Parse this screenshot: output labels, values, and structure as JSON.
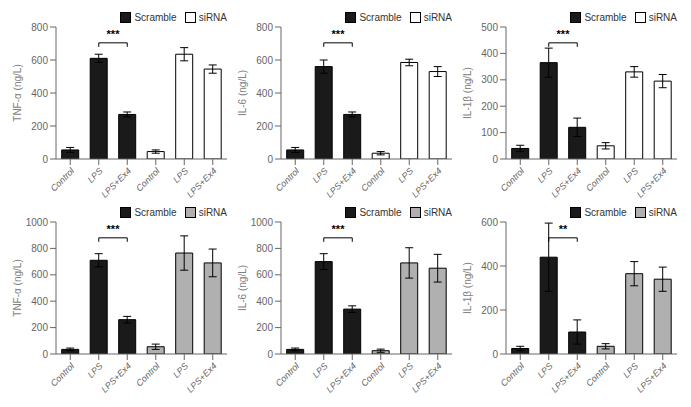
{
  "chart_data": [
    {
      "type": "bar",
      "ylabel": "TNF-α (ng/L)",
      "categories": [
        "Control",
        "LPS",
        "LPS+Ex4",
        "Control",
        "LPS",
        "LPS+Ex4"
      ],
      "series": [
        {
          "name": "Scramble",
          "color": "#1a1a1a",
          "values": [
            55,
            610,
            270,
            null,
            null,
            null
          ],
          "errors": [
            15,
            25,
            15,
            null,
            null,
            null
          ]
        },
        {
          "name": "siRNA",
          "color": "white",
          "values": [
            null,
            null,
            null,
            45,
            635,
            545
          ],
          "errors": [
            null,
            null,
            null,
            10,
            40,
            25
          ]
        }
      ],
      "ylim": [
        0,
        800
      ],
      "yticks": [
        0,
        200,
        400,
        600,
        800
      ],
      "grid": false,
      "legend": "upper right",
      "annotations": [
        {
          "text": "***",
          "between": [
            "LPS",
            "LPS+Ex4"
          ]
        }
      ]
    },
    {
      "type": "bar",
      "ylabel": "IL-6 (ng/L)",
      "categories": [
        "Control",
        "LPS",
        "LPS+Ex4",
        "Control",
        "LPS",
        "LPS+Ex4"
      ],
      "series": [
        {
          "name": "Scramble",
          "color": "#1a1a1a",
          "values": [
            55,
            560,
            270,
            null,
            null,
            null
          ],
          "errors": [
            15,
            40,
            15,
            null,
            null,
            null
          ]
        },
        {
          "name": "siRNA",
          "color": "white",
          "values": [
            null,
            null,
            null,
            35,
            585,
            530
          ],
          "errors": [
            null,
            null,
            null,
            10,
            20,
            30
          ]
        }
      ],
      "ylim": [
        0,
        800
      ],
      "yticks": [
        0,
        200,
        400,
        600,
        800
      ],
      "grid": false,
      "legend": "upper right",
      "annotations": [
        {
          "text": "***",
          "between": [
            "LPS",
            "LPS+Ex4"
          ]
        }
      ]
    },
    {
      "type": "bar",
      "ylabel": "IL-1β (ng/L)",
      "categories": [
        "Control",
        "LPS",
        "LPS+Ex4",
        "Control",
        "LPS",
        "LPS+Ex4"
      ],
      "series": [
        {
          "name": "Scramble",
          "color": "#1a1a1a",
          "values": [
            40,
            365,
            120,
            null,
            null,
            null
          ],
          "errors": [
            12,
            55,
            35,
            null,
            null,
            null
          ]
        },
        {
          "name": "siRNA",
          "color": "white",
          "values": [
            null,
            null,
            null,
            50,
            330,
            295
          ],
          "errors": [
            null,
            null,
            null,
            12,
            20,
            25
          ]
        }
      ],
      "ylim": [
        0,
        500
      ],
      "yticks": [
        0,
        100,
        200,
        300,
        400,
        500
      ],
      "grid": false,
      "legend": "upper right",
      "annotations": [
        {
          "text": "***",
          "between": [
            "LPS",
            "LPS+Ex4"
          ]
        }
      ]
    },
    {
      "type": "bar",
      "ylabel": "TNF-α (ng/L)",
      "categories": [
        "Control",
        "LPS",
        "LPS+Ex4",
        "Control",
        "LPS",
        "LPS+Ex4"
      ],
      "series": [
        {
          "name": "Scramble",
          "color": "#1a1a1a",
          "values": [
            35,
            710,
            260,
            null,
            null,
            null
          ],
          "errors": [
            10,
            50,
            25,
            null,
            null,
            null
          ]
        },
        {
          "name": "siRNA",
          "color": "#b0b0b0",
          "values": [
            null,
            null,
            null,
            55,
            765,
            690
          ],
          "errors": [
            null,
            null,
            null,
            20,
            130,
            105
          ]
        }
      ],
      "ylim": [
        0,
        1000
      ],
      "yticks": [
        0,
        200,
        400,
        600,
        800,
        1000
      ],
      "grid": false,
      "legend": "upper right",
      "annotations": [
        {
          "text": "***",
          "between": [
            "LPS",
            "LPS+Ex4"
          ]
        }
      ]
    },
    {
      "type": "bar",
      "ylabel": "IL-6 (ng/L)",
      "categories": [
        "Control",
        "LPS",
        "LPS+Ex4",
        "Control",
        "LPS",
        "LPS+Ex4"
      ],
      "series": [
        {
          "name": "Scramble",
          "color": "#1a1a1a",
          "values": [
            35,
            700,
            340,
            null,
            null,
            null
          ],
          "errors": [
            10,
            60,
            25,
            null,
            null,
            null
          ]
        },
        {
          "name": "siRNA",
          "color": "#b0b0b0",
          "values": [
            null,
            null,
            null,
            25,
            690,
            650
          ],
          "errors": [
            null,
            null,
            null,
            12,
            115,
            105
          ]
        }
      ],
      "ylim": [
        0,
        1000
      ],
      "yticks": [
        0,
        200,
        400,
        600,
        800,
        1000
      ],
      "grid": false,
      "legend": "upper right",
      "annotations": [
        {
          "text": "***",
          "between": [
            "LPS",
            "LPS+Ex4"
          ]
        }
      ]
    },
    {
      "type": "bar",
      "ylabel": "IL-1β (ng/L)",
      "categories": [
        "Control",
        "LPS",
        "LPS+Ex4",
        "Control",
        "LPS",
        "LPS+Ex4"
      ],
      "series": [
        {
          "name": "Scramble",
          "color": "#1a1a1a",
          "values": [
            25,
            440,
            100,
            null,
            null,
            null
          ],
          "errors": [
            10,
            155,
            55,
            null,
            null,
            null
          ]
        },
        {
          "name": "siRNA",
          "color": "#b0b0b0",
          "values": [
            null,
            null,
            null,
            35,
            365,
            340
          ],
          "errors": [
            null,
            null,
            null,
            12,
            55,
            55
          ]
        }
      ],
      "ylim": [
        0,
        600
      ],
      "yticks": [
        0,
        200,
        400,
        600
      ],
      "grid": false,
      "legend": "upper right",
      "annotations": [
        {
          "text": "**",
          "between": [
            "LPS",
            "LPS+Ex4"
          ]
        }
      ]
    }
  ]
}
